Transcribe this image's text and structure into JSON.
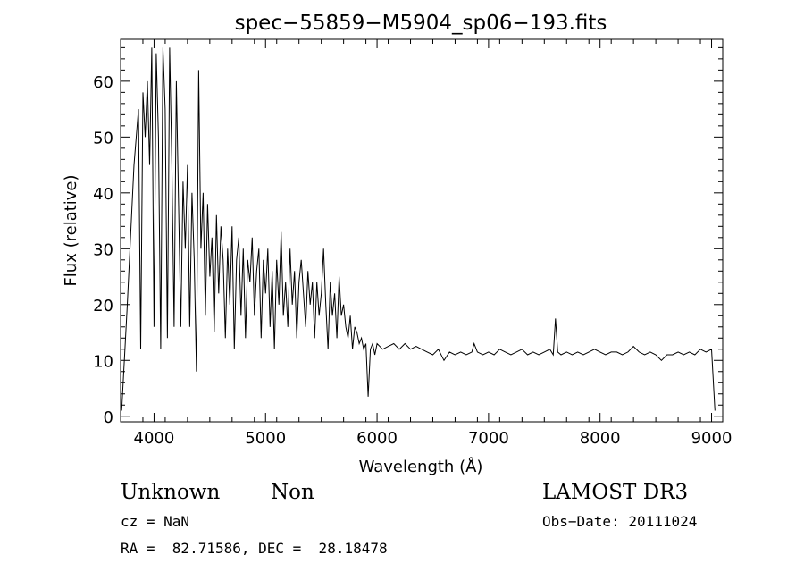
{
  "chart_data": {
    "type": "line",
    "title": "spec−55859−M5904_sp06−193.fits",
    "xlabel": "Wavelength (Å)",
    "ylabel": "Flux (relative)",
    "xlim": [
      3700,
      9100
    ],
    "ylim": [
      -1,
      67.5
    ],
    "xticks": [
      4000,
      5000,
      6000,
      7000,
      8000,
      9000
    ],
    "yticks": [
      0,
      10,
      20,
      30,
      40,
      50,
      60
    ],
    "xtick_labels": [
      "4000",
      "5000",
      "6000",
      "7000",
      "8000",
      "9000"
    ],
    "ytick_labels": [
      "0",
      "10",
      "20",
      "30",
      "40",
      "50",
      "60"
    ],
    "series": [
      {
        "name": "flux",
        "x": [
          3710,
          3760,
          3820,
          3860,
          3880,
          3900,
          3920,
          3940,
          3960,
          3980,
          4000,
          4020,
          4040,
          4060,
          4080,
          4100,
          4120,
          4140,
          4160,
          4180,
          4200,
          4220,
          4240,
          4260,
          4280,
          4300,
          4320,
          4340,
          4360,
          4380,
          4400,
          4420,
          4440,
          4460,
          4480,
          4500,
          4520,
          4540,
          4560,
          4580,
          4600,
          4620,
          4640,
          4660,
          4680,
          4700,
          4720,
          4740,
          4760,
          4780,
          4800,
          4820,
          4840,
          4860,
          4880,
          4900,
          4920,
          4940,
          4960,
          4980,
          5000,
          5020,
          5040,
          5060,
          5080,
          5100,
          5120,
          5140,
          5160,
          5180,
          5200,
          5220,
          5240,
          5260,
          5280,
          5300,
          5320,
          5340,
          5360,
          5380,
          5400,
          5420,
          5440,
          5460,
          5480,
          5500,
          5520,
          5540,
          5560,
          5580,
          5600,
          5620,
          5640,
          5660,
          5680,
          5700,
          5720,
          5740,
          5760,
          5780,
          5800,
          5820,
          5840,
          5860,
          5880,
          5900,
          5920,
          5940,
          5960,
          5980,
          6000,
          6050,
          6100,
          6150,
          6200,
          6250,
          6300,
          6350,
          6400,
          6450,
          6500,
          6550,
          6600,
          6650,
          6700,
          6750,
          6800,
          6850,
          6870,
          6900,
          6950,
          7000,
          7050,
          7100,
          7150,
          7200,
          7250,
          7300,
          7350,
          7400,
          7450,
          7500,
          7550,
          7580,
          7600,
          7620,
          7650,
          7700,
          7750,
          7800,
          7850,
          7900,
          7950,
          8000,
          8050,
          8100,
          8150,
          8200,
          8250,
          8300,
          8350,
          8400,
          8450,
          8500,
          8550,
          8600,
          8650,
          8700,
          8750,
          8800,
          8850,
          8900,
          8950,
          9000,
          9030
        ],
        "values": [
          1,
          20,
          45,
          55,
          12,
          58,
          50,
          60,
          45,
          66,
          16,
          65,
          50,
          12,
          66,
          55,
          14,
          66,
          45,
          16,
          60,
          38,
          16,
          42,
          30,
          45,
          16,
          40,
          28,
          8,
          62,
          30,
          40,
          18,
          38,
          25,
          32,
          15,
          36,
          22,
          34,
          28,
          14,
          30,
          20,
          34,
          12,
          28,
          32,
          18,
          30,
          14,
          28,
          24,
          32,
          18,
          26,
          30,
          14,
          28,
          22,
          30,
          16,
          26,
          12,
          28,
          20,
          33,
          18,
          24,
          16,
          30,
          20,
          26,
          14,
          24,
          28,
          22,
          16,
          26,
          20,
          24,
          14,
          24,
          18,
          22,
          30,
          20,
          12,
          24,
          18,
          22,
          14,
          25,
          18,
          20,
          16,
          14,
          18,
          12,
          16,
          15,
          13,
          14,
          12,
          13,
          3.5,
          12,
          13,
          11,
          13,
          12,
          12.5,
          13,
          12,
          13,
          12,
          12.5,
          12,
          11.5,
          11,
          12,
          10,
          11.5,
          11,
          11.5,
          11,
          11.5,
          13,
          11.5,
          11,
          11.5,
          11,
          12,
          11.5,
          11,
          11.5,
          12,
          11,
          11.5,
          11,
          11.5,
          12,
          11,
          17.5,
          11.5,
          11,
          11.5,
          11,
          11.5,
          11,
          11.5,
          12,
          11.5,
          11,
          11.5,
          11.5,
          11,
          11.5,
          12.5,
          11.5,
          11,
          11.5,
          11,
          10,
          11,
          11,
          11.5,
          11,
          11.5,
          11,
          12,
          11.5,
          12,
          1
        ]
      }
    ]
  },
  "info": {
    "object_class": "Unknown",
    "subclass": "Non",
    "survey": "LAMOST DR3",
    "redshift": "cz = NaN",
    "obs_date": "Obs−Date: 20111024",
    "coords": "RA =  82.71586, DEC =  28.18478"
  }
}
